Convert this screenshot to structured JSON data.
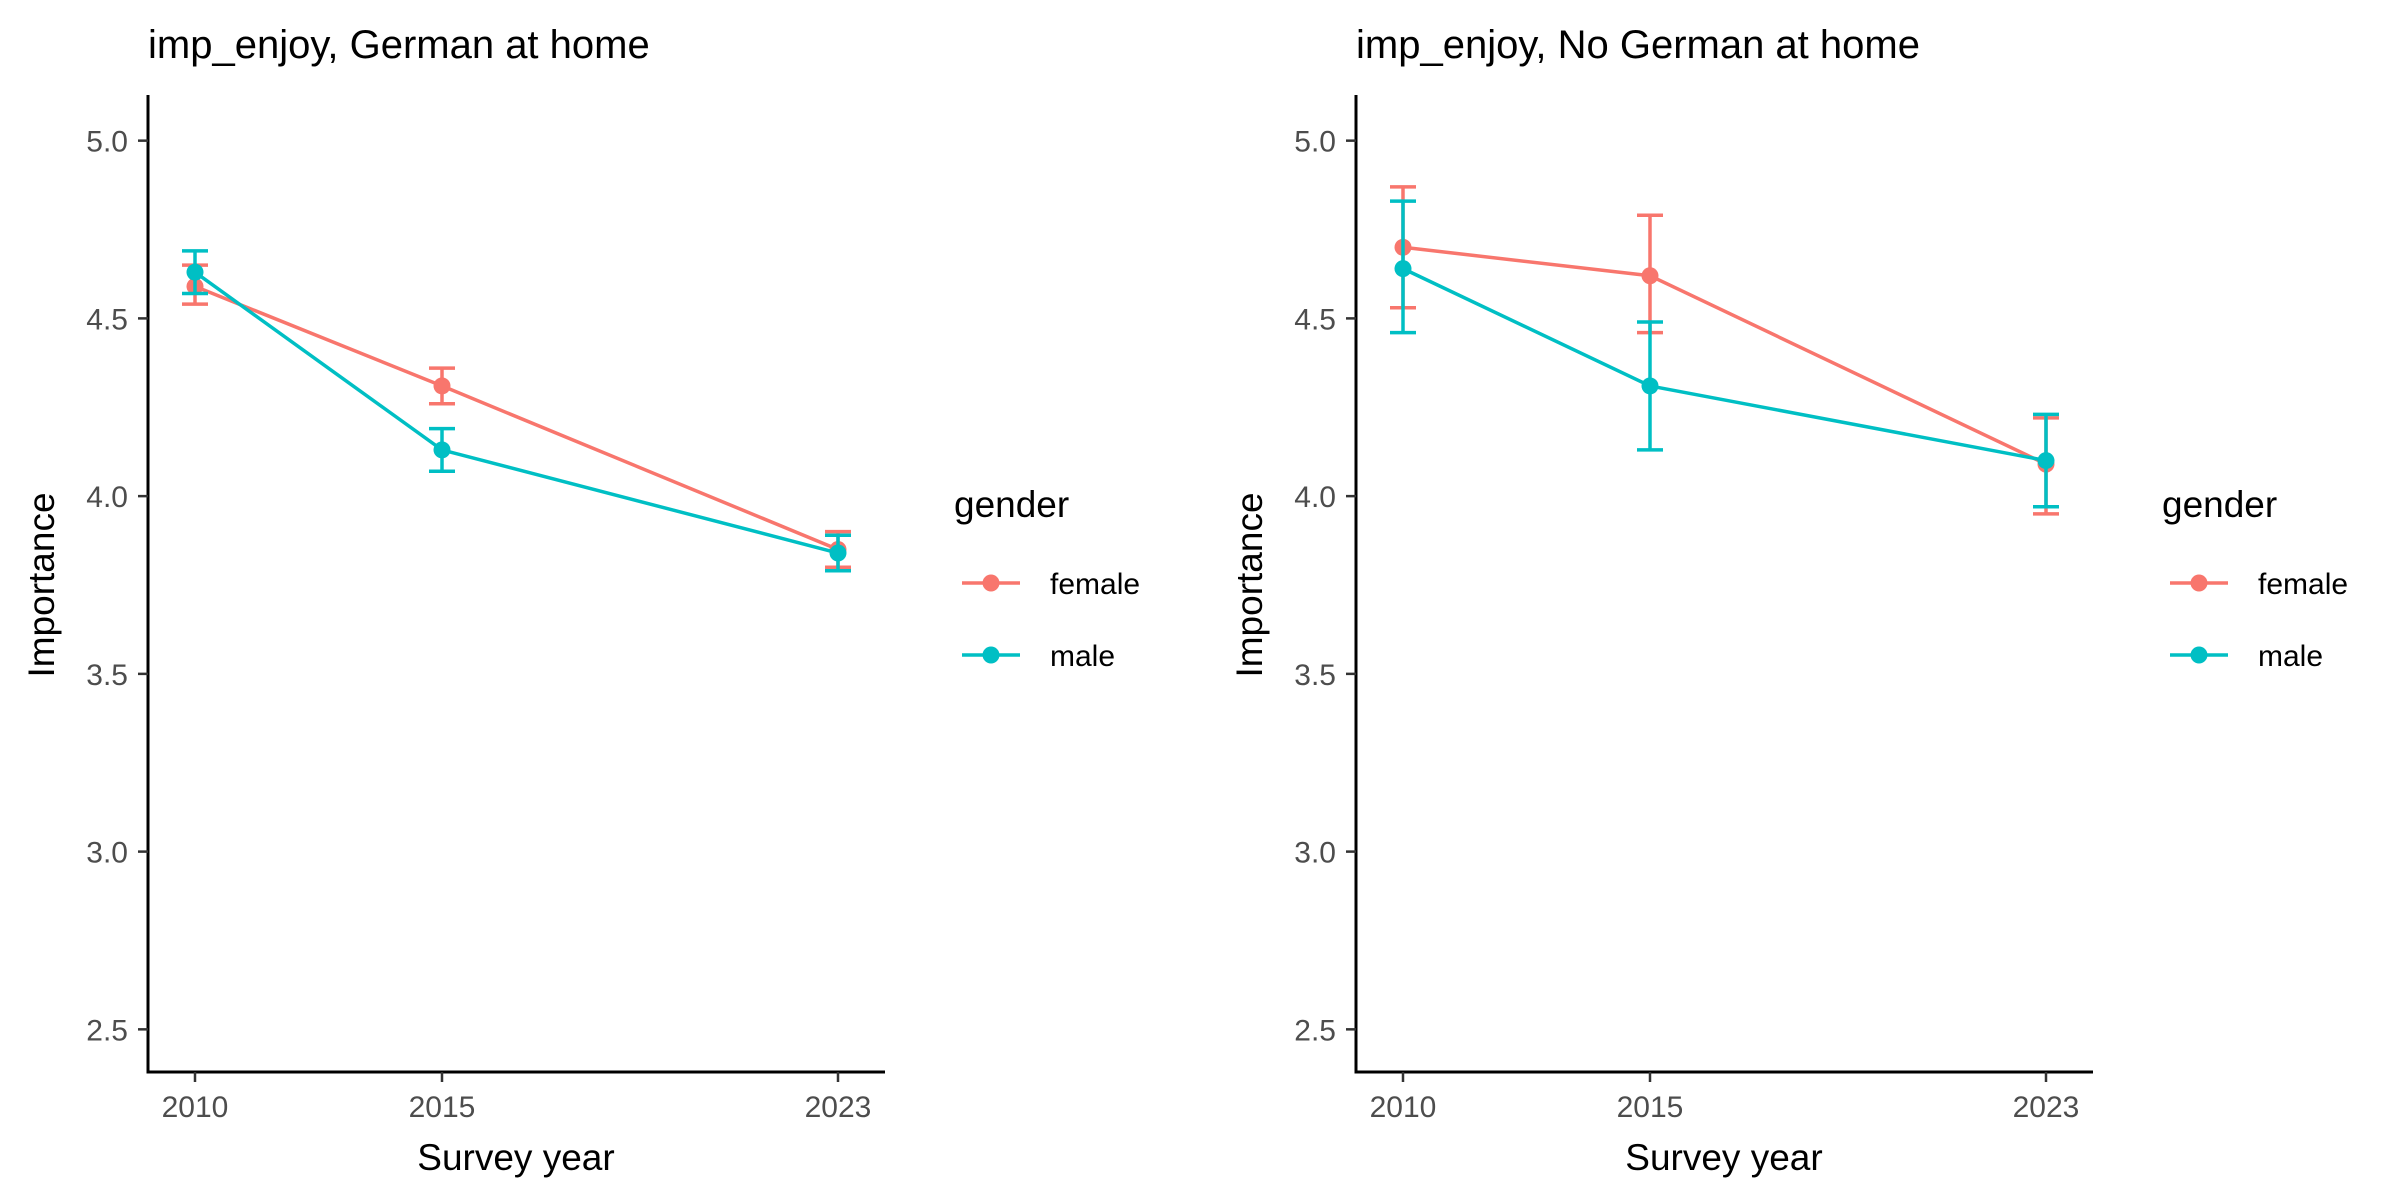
{
  "chart_data": [
    {
      "type": "line",
      "title": "imp_enjoy, German at home",
      "xlabel": "Survey year",
      "ylabel": "Importance",
      "x": [
        2010,
        2015,
        2023
      ],
      "x_ticks": [
        "2010",
        "2015",
        "2023"
      ],
      "y_ticks": [
        "2.5",
        "3.0",
        "3.5",
        "4.0",
        "4.5",
        "5.0"
      ],
      "ylim": [
        2.38,
        5.12
      ],
      "legend_title": "gender",
      "legend_position": "right",
      "grid": false,
      "series": [
        {
          "name": "female",
          "color": "#F8766D",
          "values": [
            4.59,
            4.31,
            3.85
          ],
          "error_low": [
            4.54,
            4.26,
            3.8
          ],
          "error_high": [
            4.65,
            4.36,
            3.9
          ]
        },
        {
          "name": "male",
          "color": "#00BFC4",
          "values": [
            4.63,
            4.13,
            3.84
          ],
          "error_low": [
            4.57,
            4.07,
            3.79
          ],
          "error_high": [
            4.69,
            4.19,
            3.89
          ]
        }
      ]
    },
    {
      "type": "line",
      "title": "imp_enjoy, No German at home",
      "xlabel": "Survey year",
      "ylabel": "Importance",
      "x": [
        2010,
        2015,
        2023
      ],
      "x_ticks": [
        "2010",
        "2015",
        "2023"
      ],
      "y_ticks": [
        "2.5",
        "3.0",
        "3.5",
        "4.0",
        "4.5",
        "5.0"
      ],
      "ylim": [
        2.38,
        5.12
      ],
      "legend_title": "gender",
      "legend_position": "right",
      "grid": false,
      "series": [
        {
          "name": "female",
          "color": "#F8766D",
          "values": [
            4.7,
            4.62,
            4.09
          ],
          "error_low": [
            4.53,
            4.46,
            3.95
          ],
          "error_high": [
            4.87,
            4.79,
            4.22
          ]
        },
        {
          "name": "male",
          "color": "#00BFC4",
          "values": [
            4.64,
            4.31,
            4.1
          ],
          "error_low": [
            4.46,
            4.13,
            3.97
          ],
          "error_high": [
            4.83,
            4.49,
            4.23
          ]
        }
      ]
    }
  ]
}
